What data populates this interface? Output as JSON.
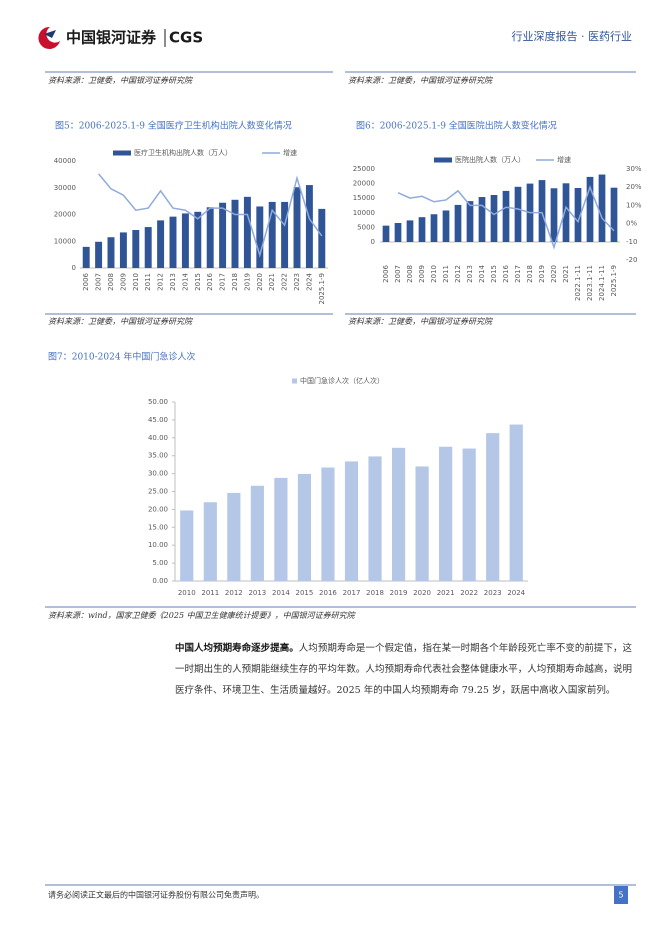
{
  "header": {
    "logo": "中国银河证券",
    "logo_en": "CGS",
    "report": "行业深度报告 · 医药行业"
  },
  "top_sources": [
    "资料来源：卫健委，中国银河证券研究院",
    "资料来源：卫健委，中国银河证券研究院"
  ],
  "chart_data": [
    {
      "type": "bar",
      "title": "图5：2006-2025.1-9 全国医疗卫生机构出院人数变化情况",
      "source": "资料来源：卫健委，中国银河证券研究院",
      "categories": [
        "2006",
        "2007",
        "2008",
        "2009",
        "2010",
        "2011",
        "2012",
        "2013",
        "2014",
        "2015",
        "2016",
        "2017",
        "2018",
        "2019",
        "2020",
        "2021",
        "2022",
        "2023",
        "2024",
        "2025.1-9"
      ],
      "series": [
        {
          "name": "医疗卫生机构出院人数（万人）",
          "type": "bar",
          "color": "#2f5597",
          "values": [
            7900,
            9800,
            11500,
            13300,
            14200,
            15300,
            17800,
            19200,
            20400,
            21000,
            22700,
            24400,
            25500,
            26600,
            23000,
            24700,
            24700,
            30200,
            31000,
            22100
          ]
        },
        {
          "name": "增速",
          "type": "line",
          "axis": "y2",
          "color": "#8faadc",
          "values": [
            null,
            24,
            17,
            14,
            7,
            8,
            16,
            8,
            7,
            3,
            8,
            8,
            5,
            5,
            -14,
            7,
            0,
            22,
            3,
            -5
          ]
        }
      ],
      "ylim": [
        0,
        40000
      ],
      "yticks": [
        0,
        10000,
        20000,
        30000,
        40000
      ],
      "y2lim": [
        -20,
        30
      ]
    },
    {
      "type": "bar",
      "title": "图6：2006-2025.1-9 全国医院出院人数变化情况",
      "source": "资料来源：卫健委，中国银河证券研究院",
      "categories": [
        "2006",
        "2007",
        "2008",
        "2009",
        "2010",
        "2011",
        "2012",
        "2013",
        "2014",
        "2015",
        "2016",
        "2017",
        "2018",
        "2019",
        "2020",
        "2021",
        "2022.1-11",
        "2023.1-11",
        "2024.1-11",
        "2025.1-9"
      ],
      "series": [
        {
          "name": "医院出院人数（万人）",
          "type": "bar",
          "color": "#2f5597",
          "values": [
            5600,
            6500,
            7400,
            8500,
            9500,
            10800,
            12700,
            14000,
            15400,
            16100,
            17500,
            18900,
            20000,
            21200,
            18400,
            20100,
            18500,
            22300,
            23100,
            18600
          ]
        },
        {
          "name": "增速",
          "type": "line",
          "axis": "y2",
          "color": "#8faadc",
          "values": [
            null,
            17,
            14,
            15,
            12,
            13,
            18,
            10,
            10,
            5,
            9,
            8,
            6,
            6,
            -13,
            9,
            1,
            20,
            3,
            -4
          ]
        }
      ],
      "ylim": [
        0,
        25000
      ],
      "yticks": [
        0,
        5000,
        10000,
        15000,
        20000,
        25000
      ],
      "y2lim": [
        -20,
        30
      ],
      "y2ticks": [
        {
          "value": 30,
          "label": "30%"
        },
        {
          "value": 20,
          "label": "20%"
        },
        {
          "value": 10,
          "label": "10%"
        },
        {
          "value": 0,
          "label": "0%"
        },
        -10,
        -20
      ]
    },
    {
      "type": "bar",
      "title": "图7：2010-2024 年中国门急诊人次",
      "source": "资料来源：wind，国家卫健委《2025 中国卫生健康统计提要》，中国银河证券研究院",
      "categories": [
        "2010",
        "2011",
        "2012",
        "2013",
        "2014",
        "2015",
        "2016",
        "2017",
        "2018",
        "2019",
        "2020",
        "2021",
        "2022",
        "2023",
        "2024"
      ],
      "series": [
        {
          "name": "中国门急诊人次（亿人次）",
          "type": "bar",
          "color": "#b4c7e7",
          "values": [
            19.7,
            22.0,
            24.6,
            26.6,
            28.8,
            29.9,
            31.7,
            33.4,
            34.8,
            37.2,
            32.0,
            37.5,
            37.0,
            41.3,
            43.7
          ]
        }
      ],
      "ylim": [
        0,
        50
      ],
      "yticks": [
        {
          "value": 0,
          "label": "0.00"
        },
        {
          "value": 5,
          "label": "5.00"
        },
        {
          "value": 10,
          "label": "10.00"
        },
        {
          "value": 15,
          "label": "15.00"
        },
        {
          "value": 20,
          "label": "20.00"
        },
        {
          "value": 25,
          "label": "25.00"
        },
        {
          "value": 30,
          "label": "30.00"
        },
        {
          "value": 35,
          "label": "35.00"
        },
        {
          "value": 40,
          "label": "40.00"
        },
        {
          "value": 45,
          "label": "45.00"
        },
        {
          "value": 50,
          "label": "50.00"
        }
      ]
    }
  ],
  "paragraph": {
    "lead": "中国人均预期寿命逐步提高。",
    "body": "人均预期寿命是一个假定值，指在某一时期各个年龄段死亡率不变的前提下，这一时期出生的人预期能继续生存的平均年数。人均预期寿命代表社会整体健康水平，人均预期寿命越高，说明医疗条件、环境卫生、生活质量越好。2025 年的中国人均预期寿命 79.25 岁，跃居中高收入国家前列。"
  },
  "footer": {
    "disclaimer": "请务必阅读正文最后的中国银河证券股份有限公司免责声明。",
    "page": 5
  }
}
